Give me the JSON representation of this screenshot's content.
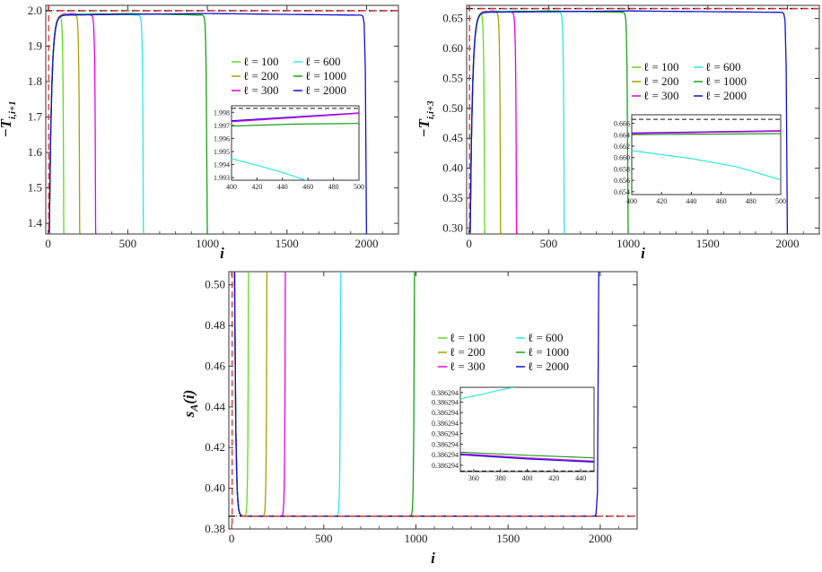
{
  "figure": {
    "legend_title_symbol": "ℓ"
  },
  "chart_data": [
    {
      "id": "top-left",
      "type": "line",
      "ylabel_main": "−T",
      "ylabel_sub": "i,i+1",
      "xlabel": "i",
      "xlim": [
        -15,
        2200
      ],
      "ylim": [
        1.37,
        2.015
      ],
      "xticks": [
        0,
        500,
        1000,
        1500,
        2000
      ],
      "yticks": [
        1.4,
        1.5,
        1.6,
        1.7,
        1.8,
        1.9,
        2.0
      ],
      "ytick_decimals": 1,
      "asymptote": 2.0,
      "curve": {
        "peak_gap": 0.008,
        "rise": 14,
        "fall": 4
      },
      "series": [
        {
          "name": "ℓ = 100",
          "ell": 100,
          "color": "#5fdc1e"
        },
        {
          "name": "ℓ = 200",
          "ell": 200,
          "color": "#a8a000"
        },
        {
          "name": "ℓ = 300",
          "ell": 300,
          "color": "#e600e6"
        },
        {
          "name": "ℓ = 600",
          "ell": 600,
          "color": "#2ce7e7"
        },
        {
          "name": "ℓ = 1000",
          "ell": 1000,
          "color": "#1aa01a"
        },
        {
          "name": "ℓ = 2000",
          "ell": 2000,
          "color": "#1010d0"
        }
      ],
      "inset": {
        "xlim": [
          400,
          500
        ],
        "ylim": [
          1.9928,
          1.9985
        ],
        "xticks": [
          400,
          420,
          440,
          460,
          480,
          500
        ],
        "yticks": [
          1.993,
          1.994,
          1.995,
          1.996,
          1.997,
          1.998
        ],
        "ytick_decimals": 3,
        "asymptote": 1.9983,
        "lines": [
          {
            "color": "#1aa01a",
            "x": [
              400,
              450,
              500
            ],
            "y": [
              1.99695,
              1.9971,
              1.99715
            ]
          },
          {
            "color": "#1010d0",
            "x": [
              400,
              450,
              500
            ],
            "y": [
              1.99735,
              1.99765,
              1.99795
            ]
          },
          {
            "color": "#e600e6",
            "x": [
              400,
              450,
              500
            ],
            "y": [
              1.99728,
              1.9976,
              1.99792
            ]
          },
          {
            "color": "#2ce7e7",
            "x": [
              400,
              420,
              440,
              460
            ],
            "y": [
              1.99445,
              1.99395,
              1.9934,
              1.99275
            ]
          }
        ]
      }
    },
    {
      "id": "top-right",
      "type": "line",
      "ylabel_main": "−T",
      "ylabel_sub": "i,i+3",
      "xlabel": "i",
      "xlim": [
        -15,
        2200
      ],
      "ylim": [
        0.29,
        0.672
      ],
      "xticks": [
        0,
        500,
        1000,
        1500,
        2000
      ],
      "yticks": [
        0.3,
        0.35,
        0.4,
        0.45,
        0.5,
        0.55,
        0.6,
        0.65
      ],
      "ytick_decimals": 2,
      "asymptote": 0.6667,
      "curve": {
        "peak_gap": 0.004,
        "rise": 14,
        "fall": 4
      },
      "series": [
        {
          "name": "ℓ = 100",
          "ell": 100,
          "color": "#5fdc1e"
        },
        {
          "name": "ℓ = 200",
          "ell": 200,
          "color": "#a8a000"
        },
        {
          "name": "ℓ = 300",
          "ell": 300,
          "color": "#e600e6"
        },
        {
          "name": "ℓ = 600",
          "ell": 600,
          "color": "#2ce7e7"
        },
        {
          "name": "ℓ = 1000",
          "ell": 1000,
          "color": "#1aa01a"
        },
        {
          "name": "ℓ = 2000",
          "ell": 2000,
          "color": "#1010d0"
        }
      ],
      "inset": {
        "xlim": [
          400,
          500
        ],
        "ylim": [
          0.6535,
          0.6675
        ],
        "xticks": [
          400,
          420,
          440,
          460,
          480,
          500
        ],
        "yticks": [
          0.654,
          0.656,
          0.658,
          0.66,
          0.662,
          0.664,
          0.666
        ],
        "ytick_decimals": 3,
        "asymptote": 0.6667,
        "lines": [
          {
            "color": "#1aa01a",
            "x": [
              400,
              450,
              500
            ],
            "y": [
              0.664,
              0.6641,
              0.6642
            ]
          },
          {
            "color": "#1010d0",
            "x": [
              400,
              450,
              500
            ],
            "y": [
              0.6643,
              0.6645,
              0.6647
            ]
          },
          {
            "color": "#e600e6",
            "x": [
              400,
              450,
              500
            ],
            "y": [
              0.6642,
              0.6644,
              0.6646
            ]
          },
          {
            "color": "#2ce7e7",
            "x": [
              400,
              440,
              470,
              500
            ],
            "y": [
              0.6612,
              0.6598,
              0.6584,
              0.6561
            ]
          }
        ]
      }
    },
    {
      "id": "bottom",
      "type": "line",
      "ylabel": "s_A(i)",
      "xlabel": "i",
      "xlim": [
        -15,
        2200
      ],
      "ylim": [
        0.38,
        0.5065
      ],
      "xticks": [
        0,
        500,
        1000,
        1500,
        2000
      ],
      "yticks": [
        0.38,
        0.4,
        0.42,
        0.44,
        0.46,
        0.48,
        0.5
      ],
      "ytick_decimals": 2,
      "asymptote": 0.3863,
      "curve": {
        "peak_gap": -0.0003,
        "rise": 6,
        "fall": 3
      },
      "series": [
        {
          "name": "ℓ = 100",
          "ell": 100,
          "color": "#5fdc1e"
        },
        {
          "name": "ℓ = 200",
          "ell": 200,
          "color": "#a8a000"
        },
        {
          "name": "ℓ = 300",
          "ell": 300,
          "color": "#e600e6"
        },
        {
          "name": "ℓ = 600",
          "ell": 600,
          "color": "#2ce7e7"
        },
        {
          "name": "ℓ = 1000",
          "ell": 1000,
          "color": "#1aa01a"
        },
        {
          "name": "ℓ = 2000",
          "ell": 2000,
          "color": "#1010d0"
        }
      ],
      "inset": {
        "xlim": [
          350,
          450
        ],
        "ylim": [
          0,
          8
        ],
        "xticks": [
          360,
          380,
          400,
          420,
          440
        ],
        "ytick_labels": [
          "0.386294",
          "0.386294",
          "0.386294",
          "0.386294",
          "0.386294",
          "0.386294",
          "0.386294",
          "0.386294"
        ],
        "ytick_values": [
          0.6,
          1.6,
          2.6,
          3.6,
          4.6,
          5.6,
          6.6,
          7.5
        ],
        "asymptote": 0.05,
        "lines": [
          {
            "color": "#2ce7e7",
            "x": [
              350,
              365,
              380,
              390
            ],
            "y": [
              6.9,
              7.3,
              7.75,
              8.0
            ]
          },
          {
            "color": "#1aa01a",
            "x": [
              350,
              400,
              450
            ],
            "y": [
              1.85,
              1.55,
              1.3
            ]
          },
          {
            "color": "#e600e6",
            "x": [
              350,
              400,
              450
            ],
            "y": [
              1.7,
              1.3,
              1.0
            ]
          },
          {
            "color": "#1010d0",
            "x": [
              350,
              400,
              450
            ],
            "y": [
              1.6,
              1.2,
              0.9
            ]
          }
        ]
      }
    }
  ]
}
